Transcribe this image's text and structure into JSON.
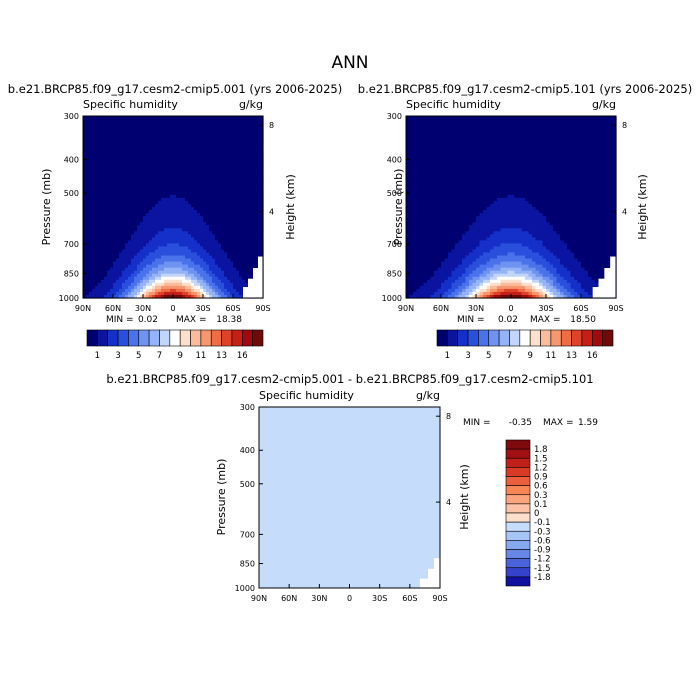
{
  "page_title": "ANN",
  "colors": {
    "positive": [
      "#fde0cb",
      "#fcc3a8",
      "#fca47e",
      "#f78556",
      "#eb5f3c",
      "#d93a25",
      "#c0201a",
      "#a00f12",
      "#7e0a0e"
    ],
    "negative": [
      "#c6dcfb",
      "#a6c4f5",
      "#86a8ee",
      "#6786e6",
      "#4a63db",
      "#3543cc",
      "#2028b8",
      "#1110a0",
      "#0a0a7c"
    ]
  },
  "chart_data": [
    {
      "type": "contour",
      "id": "panel1",
      "title": "b.e21.BRCP85.f09_g17.cesm2-cmip5.001 (yrs 2006-2025)",
      "left_label": "Specific humidity",
      "right_label": "g/kg",
      "xlabel": "",
      "ylabel": "Pressure (mb)",
      "y2label": "Height (km)",
      "x_ticks": [
        "90N",
        "60N",
        "30N",
        "0",
        "30S",
        "60S",
        "90S"
      ],
      "x_values": [
        90,
        60,
        30,
        0,
        -30,
        -60,
        -90
      ],
      "y_ticks": [
        "300",
        "400",
        "500",
        "700",
        "850",
        "1000"
      ],
      "y_values": [
        300,
        400,
        500,
        700,
        850,
        1000
      ],
      "y2_ticks": [
        "8",
        "4"
      ],
      "y2_values": [
        8,
        4
      ],
      "min_label": "MIN =",
      "min_value": "0.02",
      "max_label": "MAX =",
      "max_value": "18.38",
      "field": {
        "lat_sigma": 28,
        "peak": 17.5,
        "scale_height_hpa": 170,
        "tropical_center": 10
      }
    },
    {
      "type": "contour",
      "id": "panel2",
      "title": "b.e21.BRCP85.f09_g17.cesm2-cmip5.101 (yrs 2006-2025)",
      "left_label": "Specific humidity",
      "right_label": "g/kg",
      "xlabel": "",
      "ylabel": "Pressure (mb)",
      "y2label": "Height (km)",
      "x_ticks": [
        "90N",
        "60N",
        "30N",
        "0",
        "30S",
        "60S",
        "90S"
      ],
      "x_values": [
        90,
        60,
        30,
        0,
        -30,
        -60,
        -90
      ],
      "y_ticks": [
        "300",
        "400",
        "500",
        "700",
        "850",
        "1000"
      ],
      "y_values": [
        300,
        400,
        500,
        700,
        850,
        1000
      ],
      "y2_ticks": [
        "8",
        "4"
      ],
      "y2_values": [
        8,
        4
      ],
      "min_label": "MIN =",
      "min_value": "0.02",
      "max_label": "MAX =",
      "max_value": "18.50",
      "field": {
        "lat_sigma": 28,
        "peak": 17.6,
        "scale_height_hpa": 170,
        "tropical_center": 10
      }
    },
    {
      "type": "contour",
      "id": "panel3",
      "title": "b.e21.BRCP85.f09_g17.cesm2-cmip5.001 - b.e21.BRCP85.f09_g17.cesm2-cmip5.101",
      "left_label": "Specific humidity",
      "right_label": "g/kg",
      "xlabel": "",
      "ylabel": "Pressure (mb)",
      "y2label": "Height (km)",
      "x_ticks": [
        "90N",
        "60N",
        "30N",
        "0",
        "30S",
        "60S",
        "90S"
      ],
      "x_values": [
        90,
        60,
        30,
        0,
        -30,
        -60,
        -90
      ],
      "y_ticks": [
        "300",
        "400",
        "500",
        "700",
        "850",
        "1000"
      ],
      "y_values": [
        300,
        400,
        500,
        700,
        850,
        1000
      ],
      "y2_ticks": [
        "8",
        "4"
      ],
      "y2_values": [
        8,
        4
      ],
      "min_label": "MIN =",
      "min_value": "-0.35",
      "max_label": "MAX =",
      "max_value": "1.59"
    }
  ],
  "colorbar_top": {
    "labels": [
      "1",
      "3",
      "5",
      "7",
      "9",
      "11",
      "13",
      "16"
    ],
    "colors": [
      "#000070",
      "#0a14a0",
      "#1430c8",
      "#2a4fdc",
      "#4a72ea",
      "#6f93f1",
      "#95b3f7",
      "#c2d6fb",
      "#ffffff",
      "#fde0cb",
      "#fbbc9c",
      "#f8966e",
      "#ef6c44",
      "#de4228",
      "#c52016",
      "#9e0a0e",
      "#6e0a0a"
    ]
  },
  "colorbar_diff": {
    "labels": [
      "1.8",
      "1.5",
      "1.2",
      "0.9",
      "0.6",
      "0.3",
      "0.1",
      "0",
      "-0.1",
      "-0.3",
      "-0.6",
      "-0.9",
      "-1.2",
      "-1.5",
      "-1.8"
    ],
    "colors": [
      "#7e0a0e",
      "#a00f12",
      "#c0201a",
      "#d93a25",
      "#eb5f3c",
      "#f78556",
      "#fca47e",
      "#fcc3a8",
      "#fde0cb",
      "#c6dcfb",
      "#a6c4f5",
      "#86a8ee",
      "#6786e6",
      "#4a63db",
      "#3543cc",
      "#1110a0"
    ]
  }
}
